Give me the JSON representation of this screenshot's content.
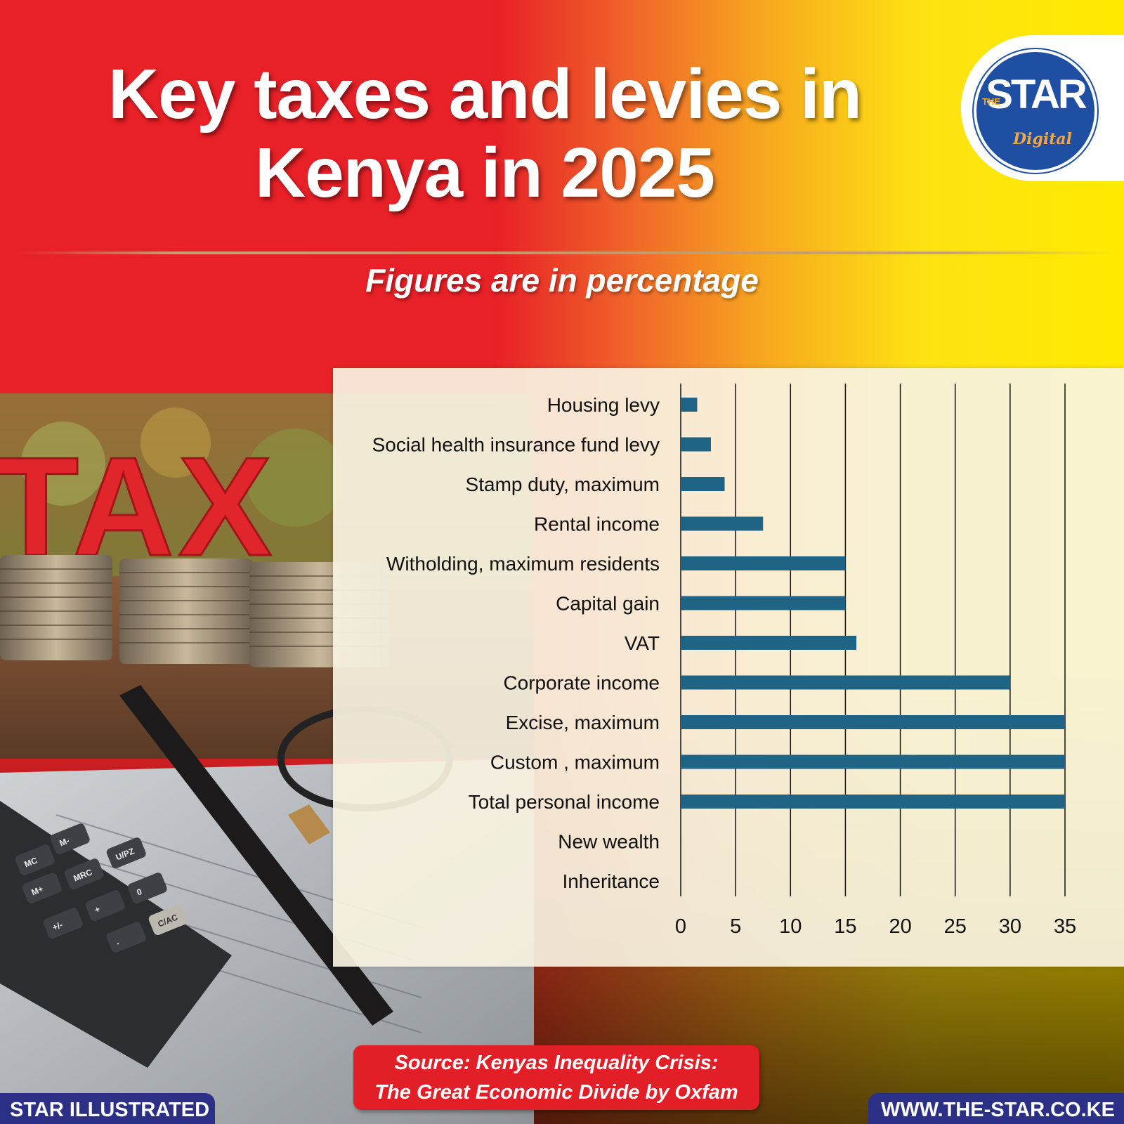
{
  "header": {
    "title_line1": "Key taxes and levies in",
    "title_line2": "Kenya in 2025",
    "subtitle": "Figures are in percentage"
  },
  "logo": {
    "the": "THE",
    "star": "STAR",
    "digital": "Digital"
  },
  "photo": {
    "tax_letters": "TAX",
    "calculator_keys": [
      "MC",
      "M-",
      "M+",
      "MRC",
      "U/PZ",
      "+/-",
      "+",
      "0",
      ".",
      "C/AC"
    ]
  },
  "footer": {
    "source_line1": "Source: Kenyas Inequality Crisis:",
    "source_line2": "The Great Economic Divide by Oxfam",
    "left_tag": "STAR ILLUSTRATED",
    "right_tag": "WWW.THE-STAR.CO.KE"
  },
  "colors": {
    "bar": "#1f6385",
    "gridline": "#111111",
    "brand_red": "#e21e26",
    "brand_blue": "#2b2f86",
    "brand_yellow": "#ffea00"
  },
  "chart_data": {
    "type": "bar",
    "orientation": "horizontal",
    "categories": [
      "Housing levy",
      "Social health insurance fund levy",
      "Stamp duty, maximum",
      "Rental income",
      "Witholding, maximum residents",
      "Capital gain",
      "VAT",
      "Corporate income",
      "Excise, maximum",
      "Custom , maximum",
      "Total personal income",
      "New wealth",
      "Inheritance"
    ],
    "values": [
      1.5,
      2.75,
      4,
      7.5,
      15,
      15,
      16,
      30,
      35,
      35,
      35,
      0,
      0
    ],
    "xlim": [
      0,
      35
    ],
    "xticks": [
      0,
      5,
      10,
      15,
      20,
      25,
      30,
      35
    ],
    "grid": true,
    "legend": "none"
  }
}
